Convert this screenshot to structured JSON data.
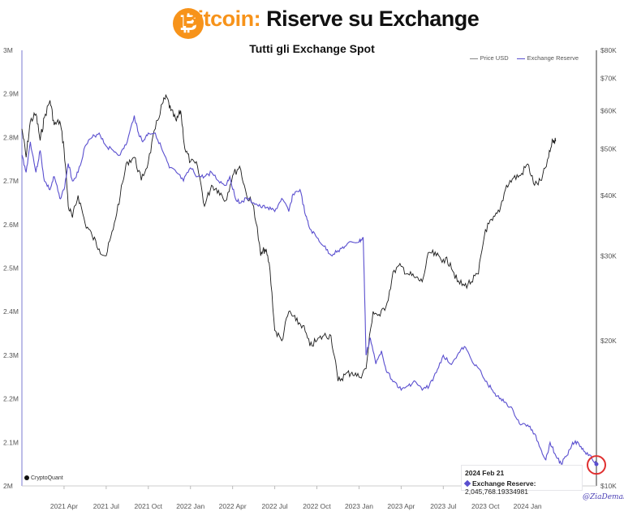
{
  "header": {
    "title_accent": "Bitcoin:",
    "title_rest": "Riserve su Exchange",
    "subtitle": "Tutti gli Exchange Spot",
    "logo_glyph": "₿"
  },
  "legend": {
    "price": "Price USD",
    "reserve": "Exchange Reserve"
  },
  "tooltip": {
    "date": "2024 Feb 21",
    "label": "Exchange Reserve:",
    "value": "2,045,768.19334981"
  },
  "watermark": "CryptoQuant",
  "signature": "@ZiaDemalis",
  "colors": {
    "reserve": "#5a4fcf",
    "price": "#1a1a1a",
    "accent": "#f7931a",
    "circle": "#e03030"
  },
  "chart_data": {
    "type": "line",
    "x_tick_labels": [
      "2021 Apr",
      "2021 Jul",
      "2021 Oct",
      "2022 Jan",
      "2022 Apr",
      "2022 Jul",
      "2022 Oct",
      "2023 Jan",
      "2023 Apr",
      "2023 Jul",
      "2023 Oct",
      "2024 Jan"
    ],
    "x_tick_months": [
      3,
      6,
      9,
      12,
      15,
      18,
      21,
      24,
      27,
      30,
      33,
      36
    ],
    "xlim_months": [
      0.0,
      38.2
    ],
    "y_left_ticks": [
      "2M",
      "2.1M",
      "2.2M",
      "2.3M",
      "2.4M",
      "2.5M",
      "2.6M",
      "2.7M",
      "2.8M",
      "2.9M",
      "3M"
    ],
    "y_left_lim": [
      2.0,
      3.0
    ],
    "y_right_ticks": [
      "$10K",
      "$20K",
      "$30K",
      "$40K",
      "$50K",
      "$60K",
      "$70K",
      "$80K"
    ],
    "y_right_values": [
      10000,
      20000,
      30000,
      40000,
      50000,
      60000,
      70000,
      80000
    ],
    "y_right_scale": "log",
    "y_right_lim": [
      10000,
      80000
    ],
    "series": [
      {
        "name": "Exchange Reserve",
        "axis": "left",
        "unit": "BTC (millions)",
        "points": [
          [
            0.0,
            2.76
          ],
          [
            0.3,
            2.72
          ],
          [
            0.6,
            2.79
          ],
          [
            1.0,
            2.72
          ],
          [
            1.3,
            2.77
          ],
          [
            1.6,
            2.7
          ],
          [
            2.0,
            2.68
          ],
          [
            2.3,
            2.71
          ],
          [
            2.7,
            2.66
          ],
          [
            3.0,
            2.68
          ],
          [
            3.3,
            2.74
          ],
          [
            3.6,
            2.7
          ],
          [
            4.0,
            2.72
          ],
          [
            4.5,
            2.78
          ],
          [
            5.0,
            2.8
          ],
          [
            5.5,
            2.81
          ],
          [
            6.0,
            2.78
          ],
          [
            6.5,
            2.77
          ],
          [
            7.0,
            2.76
          ],
          [
            7.5,
            2.79
          ],
          [
            8.0,
            2.85
          ],
          [
            8.3,
            2.81
          ],
          [
            8.6,
            2.79
          ],
          [
            9.0,
            2.81
          ],
          [
            9.5,
            2.81
          ],
          [
            10.0,
            2.77
          ],
          [
            10.5,
            2.73
          ],
          [
            11.0,
            2.72
          ],
          [
            11.5,
            2.7
          ],
          [
            12.0,
            2.73
          ],
          [
            12.5,
            2.71
          ],
          [
            13.0,
            2.71
          ],
          [
            13.5,
            2.72
          ],
          [
            14.0,
            2.7
          ],
          [
            14.5,
            2.69
          ],
          [
            14.8,
            2.71
          ],
          [
            15.2,
            2.66
          ],
          [
            15.6,
            2.65
          ],
          [
            16.0,
            2.66
          ],
          [
            16.5,
            2.65
          ],
          [
            17.0,
            2.64
          ],
          [
            17.5,
            2.64
          ],
          [
            18.0,
            2.63
          ],
          [
            18.5,
            2.66
          ],
          [
            19.0,
            2.63
          ],
          [
            19.3,
            2.67
          ],
          [
            19.8,
            2.68
          ],
          [
            20.2,
            2.62
          ],
          [
            20.5,
            2.59
          ],
          [
            21.0,
            2.57
          ],
          [
            21.5,
            2.55
          ],
          [
            22.0,
            2.53
          ],
          [
            22.5,
            2.54
          ],
          [
            23.0,
            2.55
          ],
          [
            23.5,
            2.56
          ],
          [
            24.0,
            2.56
          ],
          [
            24.3,
            2.57
          ],
          [
            24.5,
            2.3
          ],
          [
            24.8,
            2.34
          ],
          [
            25.2,
            2.28
          ],
          [
            25.6,
            2.31
          ],
          [
            26.0,
            2.26
          ],
          [
            26.5,
            2.24
          ],
          [
            27.0,
            2.22
          ],
          [
            27.5,
            2.23
          ],
          [
            28.0,
            2.24
          ],
          [
            28.5,
            2.22
          ],
          [
            29.0,
            2.23
          ],
          [
            29.5,
            2.26
          ],
          [
            30.0,
            2.3
          ],
          [
            30.5,
            2.28
          ],
          [
            31.0,
            2.3
          ],
          [
            31.5,
            2.32
          ],
          [
            32.0,
            2.29
          ],
          [
            32.5,
            2.27
          ],
          [
            33.0,
            2.24
          ],
          [
            33.5,
            2.22
          ],
          [
            34.0,
            2.2
          ],
          [
            34.5,
            2.19
          ],
          [
            35.0,
            2.17
          ],
          [
            35.5,
            2.14
          ],
          [
            36.0,
            2.14
          ],
          [
            36.5,
            2.12
          ],
          [
            37.0,
            2.08
          ],
          [
            37.3,
            2.06
          ],
          [
            37.6,
            2.1
          ],
          [
            38.0,
            2.07
          ],
          [
            38.4,
            2.05
          ],
          [
            38.8,
            2.07
          ],
          [
            39.2,
            2.1
          ],
          [
            39.6,
            2.1
          ],
          [
            40.0,
            2.08
          ],
          [
            40.5,
            2.07
          ],
          [
            40.9,
            2.05
          ]
        ]
      },
      {
        "name": "Price USD",
        "axis": "right",
        "unit": "USD",
        "points": [
          [
            0.0,
            55000
          ],
          [
            0.3,
            48000
          ],
          [
            0.6,
            57000
          ],
          [
            1.0,
            59000
          ],
          [
            1.3,
            52000
          ],
          [
            1.6,
            58000
          ],
          [
            2.0,
            63000
          ],
          [
            2.3,
            56000
          ],
          [
            2.7,
            57000
          ],
          [
            3.0,
            50000
          ],
          [
            3.3,
            38000
          ],
          [
            3.6,
            36000
          ],
          [
            4.0,
            40000
          ],
          [
            4.5,
            35000
          ],
          [
            5.0,
            33000
          ],
          [
            5.5,
            31000
          ],
          [
            6.0,
            30000
          ],
          [
            6.5,
            34000
          ],
          [
            7.0,
            40000
          ],
          [
            7.5,
            47000
          ],
          [
            8.0,
            48000
          ],
          [
            8.5,
            43000
          ],
          [
            9.0,
            47000
          ],
          [
            9.5,
            55000
          ],
          [
            10.0,
            62000
          ],
          [
            10.3,
            64000
          ],
          [
            10.6,
            60000
          ],
          [
            11.0,
            57000
          ],
          [
            11.3,
            60000
          ],
          [
            11.6,
            50000
          ],
          [
            12.0,
            47000
          ],
          [
            12.5,
            46000
          ],
          [
            13.0,
            38000
          ],
          [
            13.5,
            42000
          ],
          [
            14.0,
            41000
          ],
          [
            14.5,
            39000
          ],
          [
            15.0,
            44000
          ],
          [
            15.5,
            46000
          ],
          [
            16.0,
            40000
          ],
          [
            16.5,
            38000
          ],
          [
            17.0,
            30000
          ],
          [
            17.3,
            31000
          ],
          [
            17.6,
            29000
          ],
          [
            18.0,
            21000
          ],
          [
            18.5,
            20000
          ],
          [
            19.0,
            23000
          ],
          [
            19.5,
            22000
          ],
          [
            20.0,
            21500
          ],
          [
            20.5,
            19500
          ],
          [
            21.0,
            20000
          ],
          [
            21.5,
            20500
          ],
          [
            22.0,
            20500
          ],
          [
            22.5,
            16500
          ],
          [
            23.0,
            17000
          ],
          [
            23.5,
            17200
          ],
          [
            24.0,
            16800
          ],
          [
            24.5,
            17500
          ],
          [
            25.0,
            23000
          ],
          [
            25.5,
            22500
          ],
          [
            26.0,
            24000
          ],
          [
            26.5,
            28000
          ],
          [
            27.0,
            28500
          ],
          [
            27.5,
            27500
          ],
          [
            28.0,
            27000
          ],
          [
            28.5,
            26500
          ],
          [
            29.0,
            30500
          ],
          [
            29.5,
            30000
          ],
          [
            30.0,
            29500
          ],
          [
            30.5,
            29000
          ],
          [
            31.0,
            26500
          ],
          [
            31.5,
            26000
          ],
          [
            32.0,
            26500
          ],
          [
            32.5,
            27500
          ],
          [
            33.0,
            34000
          ],
          [
            33.5,
            35500
          ],
          [
            34.0,
            37000
          ],
          [
            34.5,
            42000
          ],
          [
            35.0,
            43500
          ],
          [
            35.5,
            44000
          ],
          [
            36.0,
            46500
          ],
          [
            36.5,
            42000
          ],
          [
            37.0,
            43000
          ],
          [
            37.5,
            48000
          ],
          [
            37.8,
            52000
          ],
          [
            38.0,
            51800
          ]
        ]
      }
    ]
  }
}
